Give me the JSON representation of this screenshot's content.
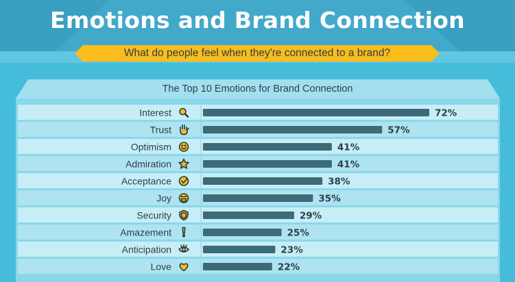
{
  "header": {
    "title": "Emotions and Brand Connection",
    "subtitle": "What do people feel when they're connected to a brand?"
  },
  "colors": {
    "background": "#3fb8d6",
    "banner": "#41a7c9",
    "subtitle_ribbon": "#f9bd1c",
    "bar": "#3c6a77",
    "row_band": "#bfeaf4",
    "text": "#2b3f4a"
  },
  "chart_data": {
    "type": "bar",
    "orientation": "horizontal",
    "title": "The Top  10 Emotions for Brand Connection",
    "categories": [
      "Interest",
      "Trust",
      "Optimism",
      "Admiration",
      "Acceptance",
      "Joy",
      "Security",
      "Amazement",
      "Anticipation",
      "Love"
    ],
    "icons": [
      "magnifier-icon",
      "hand-icon",
      "smiley-icon",
      "star-icon",
      "checkmark-circle-icon",
      "laughing-face-icon",
      "shield-icon",
      "exclamation-icon",
      "eye-icon",
      "heart-icon"
    ],
    "values": [
      72,
      57,
      41,
      41,
      38,
      35,
      29,
      25,
      23,
      22
    ],
    "value_labels": [
      "72%",
      "57%",
      "41%",
      "41%",
      "38%",
      "35%",
      "29%",
      "25%",
      "23%",
      "22%"
    ],
    "unit": "%"
  }
}
